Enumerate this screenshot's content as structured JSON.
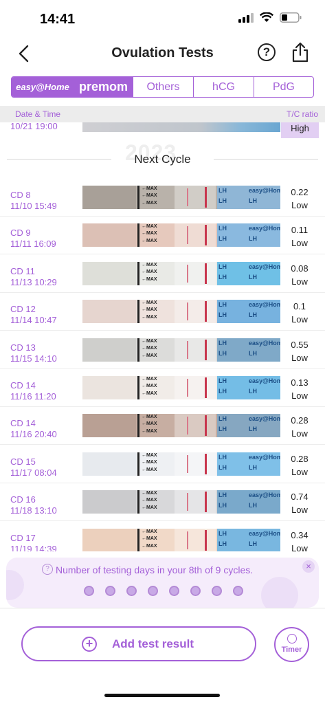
{
  "status_bar": {
    "time": "14:41"
  },
  "header": {
    "title": "Ovulation Tests"
  },
  "brands": {
    "easy_home": "easy@Home",
    "premom": "premom",
    "tabs": [
      "Others",
      "hCG",
      "PdG"
    ]
  },
  "columns": {
    "date_time": "Date & Time",
    "ratio": "T/C ratio"
  },
  "top_row": {
    "date": "10/21 19:00",
    "level": "High"
  },
  "separator": {
    "watermark": "2023",
    "label": "Next Cycle"
  },
  "tests": [
    {
      "cd": "CD 8",
      "datetime": "11/10 15:49",
      "ratio": "0.22",
      "level": "Low",
      "base": "#b9b2aa",
      "handle": "#a8a098",
      "lh": "#8fb6d6"
    },
    {
      "cd": "CD 9",
      "datetime": "11/11 16:09",
      "ratio": "0.11",
      "level": "Low",
      "base": "#e6c9bd",
      "handle": "#dcc0b5",
      "lh": "#8ab9df"
    },
    {
      "cd": "CD 11",
      "datetime": "11/13 10:29",
      "ratio": "0.08",
      "level": "Low",
      "base": "#e9eae6",
      "handle": "#dedfd9",
      "lh": "#6fc0e6"
    },
    {
      "cd": "CD 12",
      "datetime": "11/14 10:47",
      "ratio": "0.1",
      "level": "Low",
      "base": "#efe2dd",
      "handle": "#e6d5cf",
      "lh": "#77b2df"
    },
    {
      "cd": "CD 13",
      "datetime": "11/15 14:10",
      "ratio": "0.55",
      "level": "Low",
      "base": "#dcdcda",
      "handle": "#cfcfcc",
      "lh": "#7fa9c8"
    },
    {
      "cd": "CD 14",
      "datetime": "11/16 11:20",
      "ratio": "0.13",
      "level": "Low",
      "base": "#f1ece8",
      "handle": "#ebe4df",
      "lh": "#74bde6"
    },
    {
      "cd": "CD 14",
      "datetime": "11/16 20:40",
      "ratio": "0.28",
      "level": "Low",
      "base": "#c7aea2",
      "handle": "#b9a094",
      "lh": "#86a7c1"
    },
    {
      "cd": "CD 15",
      "datetime": "11/17 08:04",
      "ratio": "0.28",
      "level": "Low",
      "base": "#eef0f3",
      "handle": "#e7eaee",
      "lh": "#7fc0e8"
    },
    {
      "cd": "CD 16",
      "datetime": "11/18 13:10",
      "ratio": "0.74",
      "level": "Low",
      "base": "#d8d8da",
      "handle": "#cbcbcd",
      "lh": "#7aa9cb"
    },
    {
      "cd": "CD 17",
      "datetime": "11/19 14:39",
      "ratio": "0.34",
      "level": "Low",
      "base": "#f1d9c8",
      "handle": "#ecd0bd",
      "lh": "#79b7e0"
    }
  ],
  "strip_text": {
    "max": "←MAX",
    "lh": "LH",
    "brand": "easy@Home"
  },
  "banner": {
    "message": "Number of testing days in your 8th of 9 cycles.",
    "dot_count": 8
  },
  "actions": {
    "add_label": "Add test result",
    "timer_label": "Timer"
  }
}
